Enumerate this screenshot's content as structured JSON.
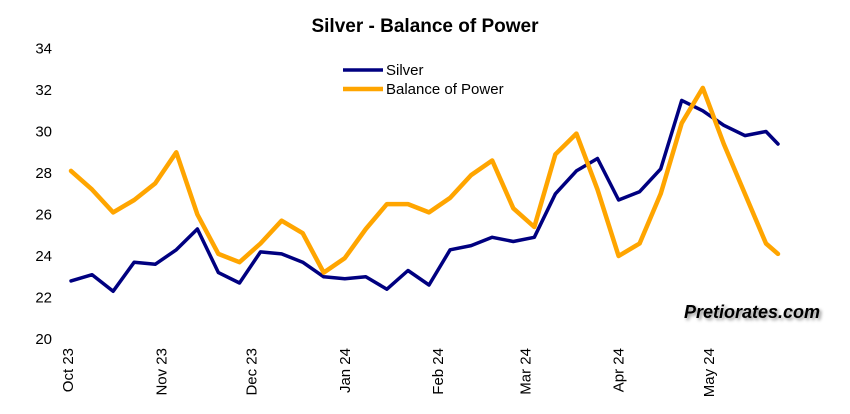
{
  "chart_data": {
    "type": "line",
    "title": "Silver - Balance of Power",
    "xlabel": "",
    "ylabel": "",
    "ylim": [
      20,
      34
    ],
    "yticks": [
      20,
      22,
      24,
      26,
      28,
      30,
      32,
      34
    ],
    "grid": false,
    "legend_position": "top-center",
    "x_tick_labels": [
      "Oct 23",
      "Nov 23",
      "Dec 23",
      "Jan 24",
      "Feb 24",
      "Mar 24",
      "Apr 24",
      "May 24"
    ],
    "x": [
      "2023-10-02",
      "2023-10-09",
      "2023-10-16",
      "2023-10-23",
      "2023-10-30",
      "2023-11-06",
      "2023-11-13",
      "2023-11-20",
      "2023-11-27",
      "2023-12-04",
      "2023-12-11",
      "2023-12-18",
      "2023-12-25",
      "2024-01-01",
      "2024-01-08",
      "2024-01-15",
      "2024-01-22",
      "2024-01-29",
      "2024-02-05",
      "2024-02-12",
      "2024-02-19",
      "2024-02-26",
      "2024-03-04",
      "2024-03-11",
      "2024-03-18",
      "2024-03-25",
      "2024-04-01",
      "2024-04-08",
      "2024-04-15",
      "2024-04-22",
      "2024-04-29",
      "2024-05-06",
      "2024-05-13",
      "2024-05-20",
      "2024-05-24"
    ],
    "series": [
      {
        "name": "Silver",
        "color": "#000080",
        "values": [
          22.8,
          23.1,
          22.3,
          23.7,
          23.6,
          24.3,
          25.3,
          23.2,
          22.7,
          24.2,
          24.1,
          23.7,
          23.0,
          22.9,
          23.0,
          22.4,
          23.3,
          22.6,
          24.3,
          24.5,
          24.9,
          24.7,
          24.9,
          27.0,
          28.1,
          28.7,
          26.7,
          27.1,
          28.2,
          31.5,
          31.0,
          30.3,
          29.8,
          30.0,
          29.4
        ]
      },
      {
        "name": "Balance of Power",
        "color": "#FFA500",
        "values": [
          28.1,
          27.2,
          26.1,
          26.7,
          27.5,
          29.0,
          26.0,
          24.1,
          23.7,
          24.6,
          25.7,
          25.1,
          23.2,
          23.9,
          25.3,
          26.5,
          26.5,
          26.1,
          26.8,
          27.9,
          28.6,
          26.3,
          25.4,
          28.9,
          29.9,
          27.2,
          24.0,
          24.6,
          27.0,
          30.4,
          32.1,
          29.4,
          27.0,
          24.6,
          24.1
        ]
      }
    ]
  },
  "watermark": "Pretiorates.com"
}
